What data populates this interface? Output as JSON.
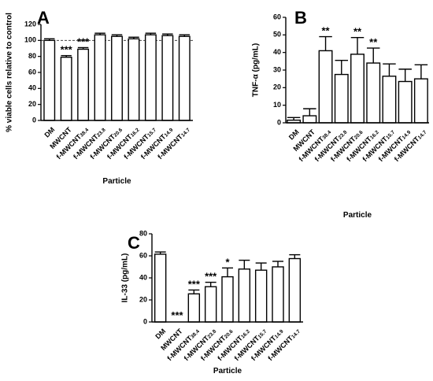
{
  "chart_data": [
    {
      "panel": "A",
      "type": "bar",
      "ylabel": "% viable cells relative to control",
      "xlabel": "Particle",
      "ylim": [
        0,
        120
      ],
      "yticks": [
        0,
        20,
        40,
        60,
        80,
        100,
        120
      ],
      "reference_line": 100,
      "categories": [
        {
          "main": "DM",
          "sub": ""
        },
        {
          "main": "MWCNT",
          "sub": ""
        },
        {
          "main": "f-MWCNT",
          "sub": "38.4"
        },
        {
          "main": "f-MWCNT",
          "sub": "23.8"
        },
        {
          "main": "f-MWCNT",
          "sub": "20.6"
        },
        {
          "main": "f-MWCNT",
          "sub": "16.2"
        },
        {
          "main": "f-MWCNT",
          "sub": "15.7"
        },
        {
          "main": "f-MWCNT",
          "sub": "14.9"
        },
        {
          "main": "f-MWCNT",
          "sub": "14.7"
        }
      ],
      "values": [
        100,
        79,
        89,
        107,
        105,
        102,
        107,
        106,
        105
      ],
      "errors": [
        2,
        2,
        2,
        2,
        2,
        2,
        2,
        2,
        2
      ],
      "significance": [
        "",
        "***",
        "***",
        "",
        "",
        "",
        "",
        "",
        ""
      ]
    },
    {
      "panel": "B",
      "type": "bar",
      "ylabel": "TNF-α (pg/mL)",
      "xlabel": "Particle",
      "ylim": [
        0,
        60
      ],
      "yticks": [
        0,
        10,
        20,
        30,
        40,
        50,
        60
      ],
      "categories": [
        {
          "main": "DM",
          "sub": ""
        },
        {
          "main": "MWCNT",
          "sub": ""
        },
        {
          "main": "f-MWCNT",
          "sub": "38.4"
        },
        {
          "main": "f-MWCNT",
          "sub": "23.8"
        },
        {
          "main": "f-MWCNT",
          "sub": "20.6"
        },
        {
          "main": "f-MWCNT",
          "sub": "16.2"
        },
        {
          "main": "f-MWCNT",
          "sub": "15.7"
        },
        {
          "main": "f-MWCNT",
          "sub": "14.9"
        },
        {
          "main": "f-MWCNT",
          "sub": "14.7"
        }
      ],
      "values": [
        1.5,
        4,
        41,
        27.5,
        39,
        34,
        26.5,
        23.5,
        25
      ],
      "errors": [
        1.5,
        4,
        8,
        8,
        9.5,
        8.5,
        7,
        7,
        8
      ],
      "significance": [
        "",
        "",
        "**",
        "",
        "**",
        "**",
        "",
        "",
        ""
      ]
    },
    {
      "panel": "C",
      "type": "bar",
      "ylabel": "IL-33 (pg/mL)",
      "xlabel": "Particle",
      "ylim": [
        0,
        80
      ],
      "yticks": [
        0,
        20,
        40,
        60,
        80
      ],
      "categories": [
        {
          "main": "DM",
          "sub": ""
        },
        {
          "main": "MWCNT",
          "sub": ""
        },
        {
          "main": "f-MWCNT",
          "sub": "38.4"
        },
        {
          "main": "f-MWCNT",
          "sub": "23.8"
        },
        {
          "main": "f-MWCNT",
          "sub": "20.6"
        },
        {
          "main": "f-MWCNT",
          "sub": "16.2"
        },
        {
          "main": "f-MWCNT",
          "sub": "15.7"
        },
        {
          "main": "f-MWCNT",
          "sub": "14.9"
        },
        {
          "main": "f-MWCNT",
          "sub": "14.7"
        }
      ],
      "values": [
        61.5,
        0,
        25.5,
        32,
        41,
        48,
        47,
        50,
        57.5
      ],
      "errors": [
        2,
        0,
        3.5,
        4,
        8,
        8,
        6.5,
        5,
        3.5
      ],
      "significance": [
        "",
        "***",
        "***",
        "***",
        "*",
        "",
        "",
        "",
        ""
      ]
    }
  ]
}
